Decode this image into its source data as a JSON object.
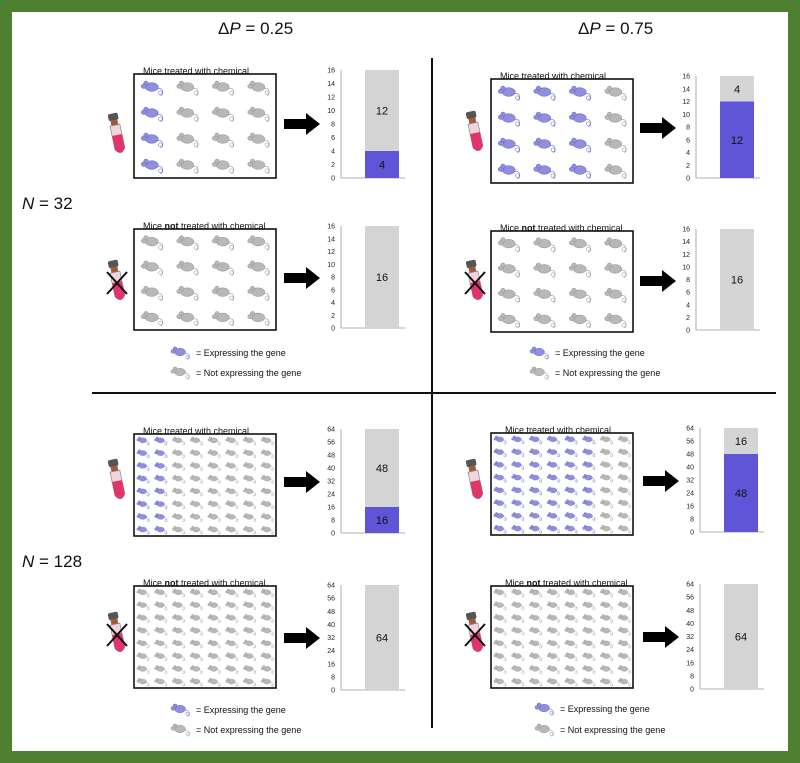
{
  "headers": {
    "col1_delta": "Δ",
    "col1_p": "P",
    "col1_rest": " = 0.25",
    "col2_delta": "Δ",
    "col2_p": "P",
    "col2_rest": " = 0.75",
    "row1_n": "N",
    "row1_rest": " = 32",
    "row2_n": "N",
    "row2_rest": " = 128"
  },
  "labels": {
    "treated": "Mice treated with chemical",
    "not_prefix": "Mice ",
    "not_bold": "not",
    "not_suffix": " treated with chemical"
  },
  "legend": {
    "expressing": "= Expressing the gene",
    "not_expressing": "= Not expressing the gene"
  },
  "colors": {
    "border": "#4f7f30",
    "expressing": "#6055d6",
    "not_expressing": "#d4d4d4",
    "mouse_blue": "#8f8fdd",
    "mouse_gray": "#b8b8b8",
    "tube": "#e0356a"
  },
  "icons": {
    "mouse": "mouse-icon",
    "dropper": "dropper-icon",
    "arrow": "right-arrow-icon",
    "cross": "cross-icon"
  },
  "chart_data": [
    {
      "type": "bar",
      "panel": "N=32, ΔP=0.25, treated",
      "ylim": [
        0,
        16
      ],
      "ticks": [
        0,
        2,
        4,
        6,
        8,
        10,
        12,
        14,
        16
      ],
      "stack": [
        {
          "value": 4,
          "label": "4",
          "expressing": true
        },
        {
          "value": 12,
          "label": "12",
          "expressing": false
        }
      ],
      "grid": {
        "rows": 4,
        "cols": 4,
        "blue_cols": 1
      }
    },
    {
      "type": "bar",
      "panel": "N=32, ΔP=0.75, treated",
      "ylim": [
        0,
        16
      ],
      "ticks": [
        0,
        2,
        4,
        6,
        8,
        10,
        12,
        14,
        16
      ],
      "stack": [
        {
          "value": 12,
          "label": "12",
          "expressing": true
        },
        {
          "value": 4,
          "label": "4",
          "expressing": false
        }
      ],
      "grid": {
        "rows": 4,
        "cols": 4,
        "blue_cols": 3
      }
    },
    {
      "type": "bar",
      "panel": "N=32, ΔP=0.25, not treated",
      "ylim": [
        0,
        16
      ],
      "ticks": [
        0,
        2,
        4,
        6,
        8,
        10,
        12,
        14,
        16
      ],
      "stack": [
        {
          "value": 16,
          "label": "16",
          "expressing": false
        }
      ],
      "grid": {
        "rows": 4,
        "cols": 4,
        "blue_cols": 0
      }
    },
    {
      "type": "bar",
      "panel": "N=32, ΔP=0.75, not treated",
      "ylim": [
        0,
        16
      ],
      "ticks": [
        0,
        2,
        4,
        6,
        8,
        10,
        12,
        14,
        16
      ],
      "stack": [
        {
          "value": 16,
          "label": "16",
          "expressing": false
        }
      ],
      "grid": {
        "rows": 4,
        "cols": 4,
        "blue_cols": 0
      }
    },
    {
      "type": "bar",
      "panel": "N=128, ΔP=0.25, treated",
      "ylim": [
        0,
        64
      ],
      "ticks": [
        0,
        8,
        16,
        24,
        32,
        40,
        48,
        56,
        64
      ],
      "stack": [
        {
          "value": 16,
          "label": "16",
          "expressing": true
        },
        {
          "value": 48,
          "label": "48",
          "expressing": false
        }
      ],
      "grid": {
        "rows": 8,
        "cols": 8,
        "blue_cols": 2
      }
    },
    {
      "type": "bar",
      "panel": "N=128, ΔP=0.75, treated",
      "ylim": [
        0,
        64
      ],
      "ticks": [
        0,
        8,
        16,
        24,
        32,
        40,
        48,
        56,
        64
      ],
      "stack": [
        {
          "value": 48,
          "label": "48",
          "expressing": true
        },
        {
          "value": 16,
          "label": "16",
          "expressing": false
        }
      ],
      "grid": {
        "rows": 8,
        "cols": 8,
        "blue_cols": 6
      }
    },
    {
      "type": "bar",
      "panel": "N=128, ΔP=0.25, not treated",
      "ylim": [
        0,
        64
      ],
      "ticks": [
        0,
        8,
        16,
        24,
        32,
        40,
        48,
        56,
        64
      ],
      "stack": [
        {
          "value": 64,
          "label": "64",
          "expressing": false
        }
      ],
      "grid": {
        "rows": 8,
        "cols": 8,
        "blue_cols": 0
      }
    },
    {
      "type": "bar",
      "panel": "N=128, ΔP=0.75, not treated",
      "ylim": [
        0,
        64
      ],
      "ticks": [
        0,
        8,
        16,
        24,
        32,
        40,
        48,
        56,
        64
      ],
      "stack": [
        {
          "value": 64,
          "label": "64",
          "expressing": false
        }
      ],
      "grid": {
        "rows": 8,
        "cols": 8,
        "blue_cols": 0
      }
    }
  ]
}
